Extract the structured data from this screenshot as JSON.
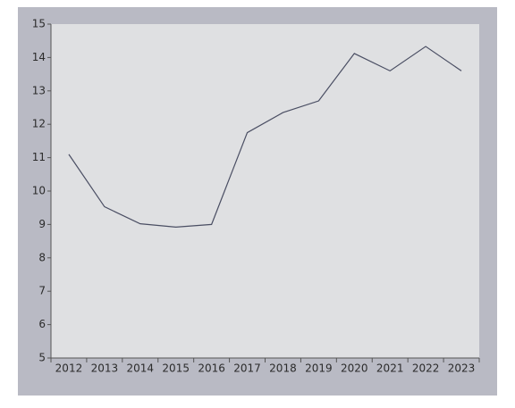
{
  "chart_data": {
    "type": "line",
    "categories": [
      "2012",
      "2013",
      "2014",
      "2015",
      "2016",
      "2017",
      "2018",
      "2019",
      "2020",
      "2021",
      "2022",
      "2023"
    ],
    "values": [
      11.1,
      9.53,
      9.02,
      8.92,
      9.0,
      11.75,
      12.35,
      12.7,
      14.12,
      13.6,
      14.33,
      13.6
    ],
    "color": "#4a4e63",
    "ylim": [
      5,
      15
    ],
    "yticks": [
      5,
      6,
      7,
      8,
      9,
      10,
      11,
      12,
      13,
      14,
      15
    ],
    "grid": false
  }
}
